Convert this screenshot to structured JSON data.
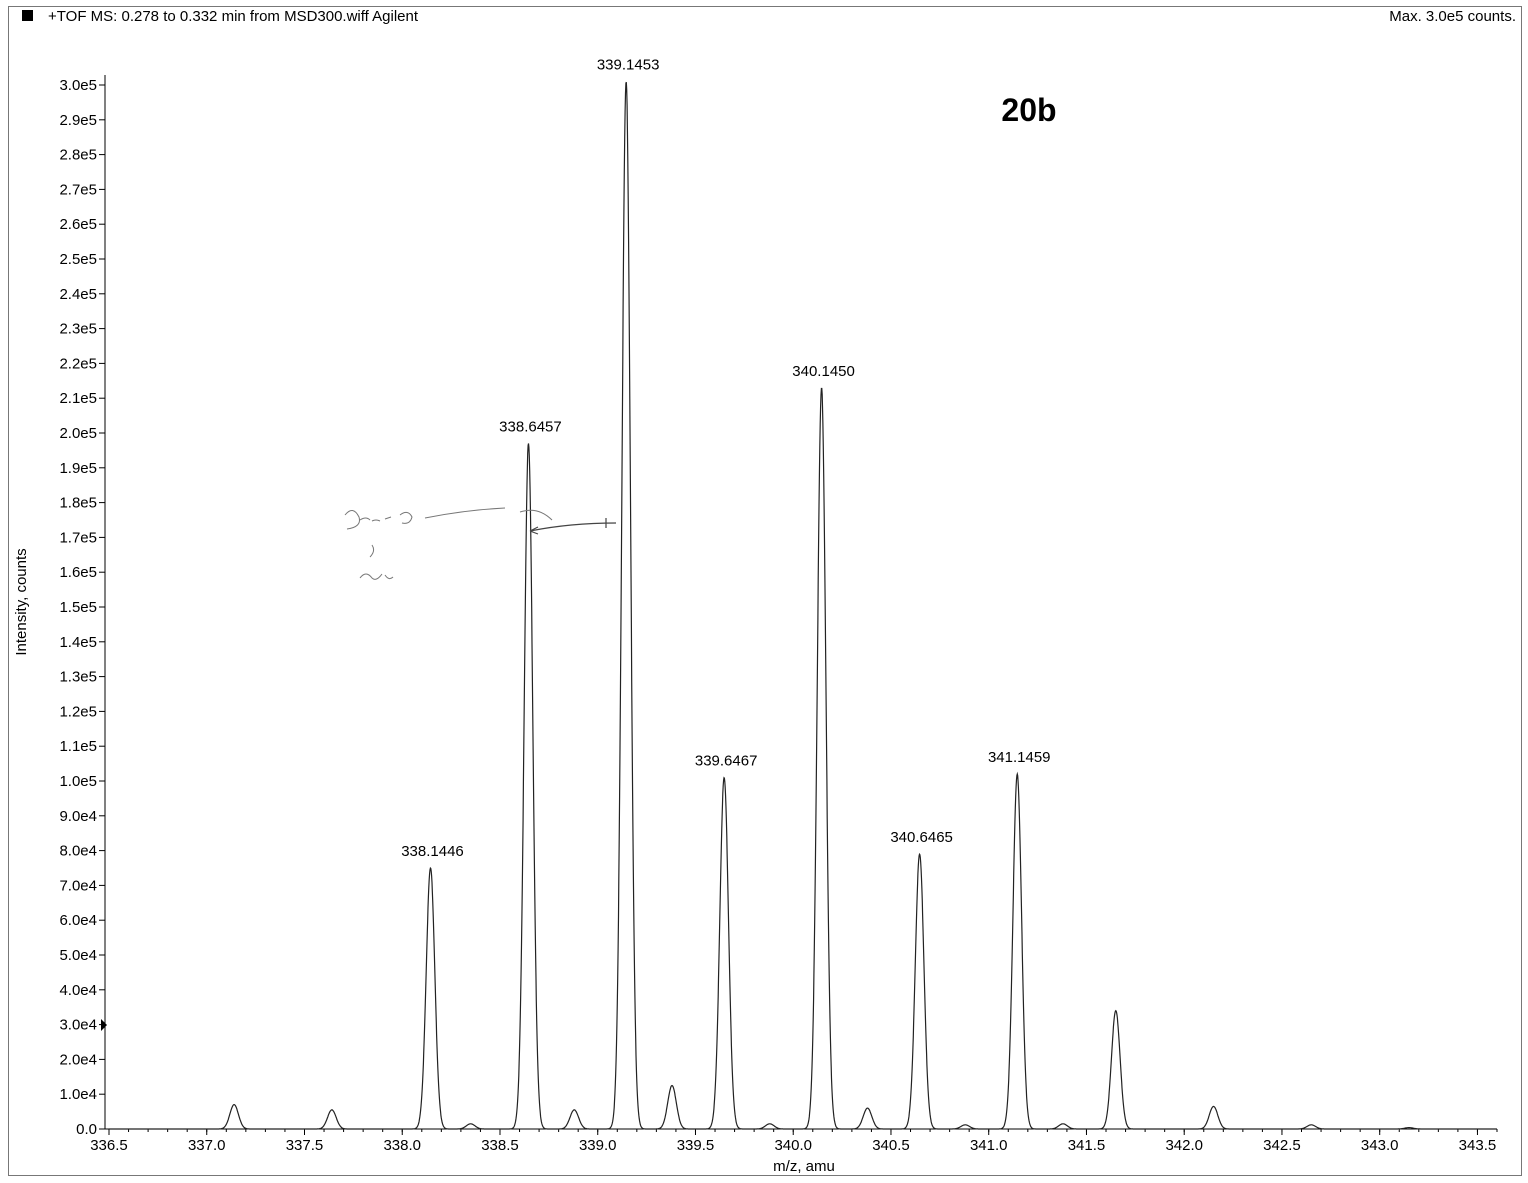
{
  "header": {
    "title": "+TOF MS: 0.278 to 0.332 min from MSD300.wiff Agilent",
    "max_counts": "Max. 3.0e5 counts."
  },
  "chart_data": {
    "type": "line",
    "annotation": "20b",
    "xlabel": "m/z, amu",
    "ylabel": "Intensity, counts",
    "xlim": [
      336.5,
      343.6
    ],
    "ylim": [
      0,
      300000
    ],
    "x_ticks": [
      {
        "value": 336.5,
        "label": "336.5"
      },
      {
        "value": 337.0,
        "label": "337.0"
      },
      {
        "value": 337.5,
        "label": "337.5"
      },
      {
        "value": 338.0,
        "label": "338.0"
      },
      {
        "value": 338.5,
        "label": "338.5"
      },
      {
        "value": 339.0,
        "label": "339.0"
      },
      {
        "value": 339.5,
        "label": "339.5"
      },
      {
        "value": 340.0,
        "label": "340.0"
      },
      {
        "value": 340.5,
        "label": "340.5"
      },
      {
        "value": 341.0,
        "label": "341.0"
      },
      {
        "value": 341.5,
        "label": "341.5"
      },
      {
        "value": 342.0,
        "label": "342.0"
      },
      {
        "value": 342.5,
        "label": "342.5"
      },
      {
        "value": 343.0,
        "label": "343.0"
      },
      {
        "value": 343.5,
        "label": "343.5"
      }
    ],
    "y_ticks": [
      {
        "value": 0,
        "label": "0.0"
      },
      {
        "value": 10000,
        "label": "1.0e4"
      },
      {
        "value": 20000,
        "label": "2.0e4"
      },
      {
        "value": 30000,
        "label": "3.0e4"
      },
      {
        "value": 40000,
        "label": "4.0e4"
      },
      {
        "value": 50000,
        "label": "5.0e4"
      },
      {
        "value": 60000,
        "label": "6.0e4"
      },
      {
        "value": 70000,
        "label": "7.0e4"
      },
      {
        "value": 80000,
        "label": "8.0e4"
      },
      {
        "value": 90000,
        "label": "9.0e4"
      },
      {
        "value": 100000,
        "label": "1.0e5"
      },
      {
        "value": 110000,
        "label": "1.1e5"
      },
      {
        "value": 120000,
        "label": "1.2e5"
      },
      {
        "value": 130000,
        "label": "1.3e5"
      },
      {
        "value": 140000,
        "label": "1.4e5"
      },
      {
        "value": 150000,
        "label": "1.5e5"
      },
      {
        "value": 160000,
        "label": "1.6e5"
      },
      {
        "value": 170000,
        "label": "1.7e5"
      },
      {
        "value": 180000,
        "label": "1.8e5"
      },
      {
        "value": 190000,
        "label": "1.9e5"
      },
      {
        "value": 200000,
        "label": "2.0e5"
      },
      {
        "value": 210000,
        "label": "2.1e5"
      },
      {
        "value": 220000,
        "label": "2.2e5"
      },
      {
        "value": 230000,
        "label": "2.3e5"
      },
      {
        "value": 240000,
        "label": "2.4e5"
      },
      {
        "value": 250000,
        "label": "2.5e5"
      },
      {
        "value": 260000,
        "label": "2.6e5"
      },
      {
        "value": 270000,
        "label": "2.7e5"
      },
      {
        "value": 280000,
        "label": "2.8e5"
      },
      {
        "value": 290000,
        "label": "2.9e5"
      },
      {
        "value": 300000,
        "label": "3.0e5"
      }
    ],
    "peaks": [
      {
        "mz": 337.14,
        "intensity": 7000
      },
      {
        "mz": 337.64,
        "intensity": 5500
      },
      {
        "mz": 338.1446,
        "intensity": 75000,
        "label": "338.1446"
      },
      {
        "mz": 338.35,
        "intensity": 1500
      },
      {
        "mz": 338.6457,
        "intensity": 197000,
        "label": "338.6457"
      },
      {
        "mz": 338.88,
        "intensity": 5500
      },
      {
        "mz": 339.1453,
        "intensity": 301000,
        "label": "339.1453"
      },
      {
        "mz": 339.38,
        "intensity": 12500
      },
      {
        "mz": 339.6467,
        "intensity": 101000,
        "label": "339.6467"
      },
      {
        "mz": 339.88,
        "intensity": 1500
      },
      {
        "mz": 340.145,
        "intensity": 213000,
        "label": "340.1450"
      },
      {
        "mz": 340.38,
        "intensity": 6000
      },
      {
        "mz": 340.6465,
        "intensity": 79000,
        "label": "340.6465"
      },
      {
        "mz": 340.88,
        "intensity": 1200
      },
      {
        "mz": 341.1459,
        "intensity": 102000,
        "label": "341.1459"
      },
      {
        "mz": 341.38,
        "intensity": 1500
      },
      {
        "mz": 341.65,
        "intensity": 34000
      },
      {
        "mz": 342.15,
        "intensity": 6500
      },
      {
        "mz": 342.65,
        "intensity": 1200
      },
      {
        "mz": 343.15,
        "intensity": 400
      }
    ]
  }
}
